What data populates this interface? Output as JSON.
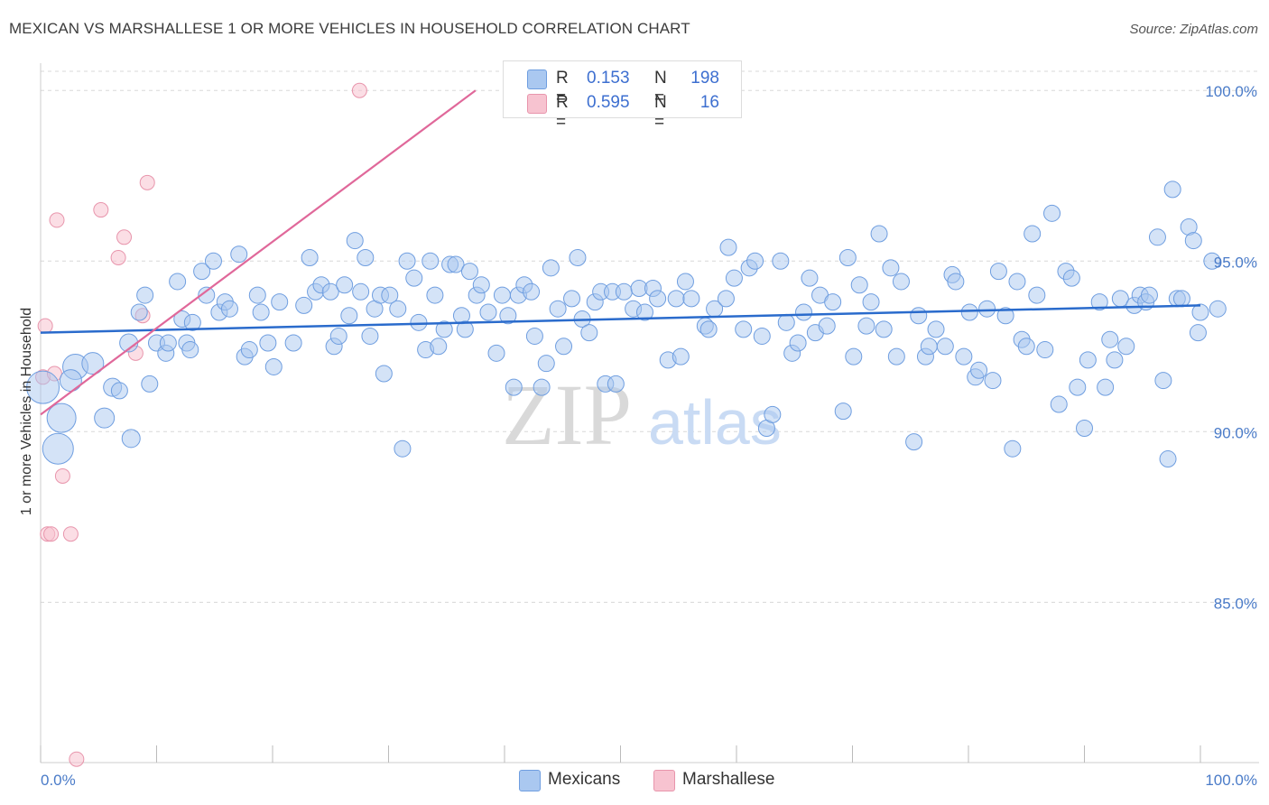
{
  "title": "MEXICAN VS MARSHALLESE 1 OR MORE VEHICLES IN HOUSEHOLD CORRELATION CHART",
  "source": "Source: ZipAtlas.com",
  "colors": {
    "blue_fill": "#aac8f0",
    "blue_stroke": "#6f9ee0",
    "blue_line": "#2a6bcc",
    "pink_fill": "#f7c3d0",
    "pink_stroke": "#e895ac",
    "pink_line": "#e0689a",
    "grid": "#d8d8d8",
    "axis_text": "#4a7bc8"
  },
  "legend": {
    "rows": [
      {
        "r_label": "R =",
        "r_value": "0.153",
        "n_label": "N =",
        "n_value": "198"
      },
      {
        "r_label": "R =",
        "r_value": "0.595",
        "n_label": "N =",
        "n_value": "16"
      }
    ]
  },
  "bottom_legend": {
    "mexicans": "Mexicans",
    "marshallese": "Marshallese"
  },
  "watermark": {
    "zip": "ZIP",
    "atlas": "atlas"
  },
  "chart_data": {
    "type": "scatter",
    "ylabel": "1 or more Vehicles in Household",
    "xlabel": "",
    "xlim": [
      0,
      100
    ],
    "ylim": [
      80.3,
      100.8
    ],
    "y_ticks": [
      85,
      90,
      95,
      100
    ],
    "y_tick_labels": [
      "85.0%",
      "90.0%",
      "95.0%",
      "100.0%"
    ],
    "x_tick_labels": [
      "0.0%",
      "100.0%"
    ],
    "grid": true,
    "series": [
      {
        "name": "Mexicans",
        "R": 0.153,
        "N": 198,
        "trend": {
          "x": [
            0,
            100
          ],
          "y": [
            92.9,
            93.7
          ]
        },
        "points": [
          [
            0.2,
            91.3,
            18
          ],
          [
            1.8,
            90.4,
            16
          ],
          [
            1.5,
            89.5,
            17
          ],
          [
            3.0,
            91.9,
            14
          ],
          [
            4.5,
            92.0,
            12
          ],
          [
            2.6,
            91.5,
            12
          ],
          [
            5.5,
            90.4,
            11
          ],
          [
            6.2,
            91.3,
            10
          ],
          [
            6.8,
            91.2,
            9
          ],
          [
            7.6,
            92.6,
            10
          ],
          [
            7.8,
            89.8,
            10
          ],
          [
            8.5,
            93.5,
            9
          ],
          [
            9.0,
            94.0,
            9
          ],
          [
            9.4,
            91.4,
            9
          ],
          [
            10.0,
            92.6,
            9
          ],
          [
            10.8,
            92.3,
            9
          ],
          [
            11.0,
            92.6,
            9
          ],
          [
            11.8,
            94.4,
            9
          ],
          [
            12.2,
            93.3,
            9
          ],
          [
            12.6,
            92.6,
            9
          ],
          [
            12.9,
            92.4,
            9
          ],
          [
            13.1,
            93.2,
            9
          ],
          [
            13.9,
            94.7,
            9
          ],
          [
            14.3,
            94.0,
            9
          ],
          [
            14.9,
            95.0,
            9
          ],
          [
            15.4,
            93.5,
            9
          ],
          [
            15.9,
            93.8,
            9
          ],
          [
            16.3,
            93.6,
            9
          ],
          [
            17.1,
            95.2,
            9
          ],
          [
            17.6,
            92.2,
            9
          ],
          [
            18.0,
            92.4,
            9
          ],
          [
            18.7,
            94.0,
            9
          ],
          [
            19.0,
            93.5,
            9
          ],
          [
            19.6,
            92.6,
            9
          ],
          [
            20.1,
            91.9,
            9
          ],
          [
            20.6,
            93.8,
            9
          ],
          [
            21.8,
            92.6,
            9
          ],
          [
            22.7,
            93.7,
            9
          ],
          [
            23.2,
            95.1,
            9
          ],
          [
            23.7,
            94.1,
            9
          ],
          [
            24.2,
            94.3,
            9
          ],
          [
            25.0,
            94.1,
            9
          ],
          [
            25.3,
            92.5,
            9
          ],
          [
            25.7,
            92.8,
            9
          ],
          [
            26.2,
            94.3,
            9
          ],
          [
            26.6,
            93.4,
            9
          ],
          [
            27.1,
            95.6,
            9
          ],
          [
            27.6,
            94.1,
            9
          ],
          [
            28.0,
            95.1,
            9
          ],
          [
            28.4,
            92.8,
            9
          ],
          [
            28.8,
            93.6,
            9
          ],
          [
            29.3,
            94.0,
            9
          ],
          [
            29.6,
            91.7,
            9
          ],
          [
            30.1,
            94.0,
            9
          ],
          [
            30.8,
            93.6,
            9
          ],
          [
            31.2,
            89.5,
            9
          ],
          [
            31.6,
            95.0,
            9
          ],
          [
            32.2,
            94.5,
            9
          ],
          [
            32.6,
            93.2,
            9
          ],
          [
            33.2,
            92.4,
            9
          ],
          [
            33.6,
            95.0,
            9
          ],
          [
            34.0,
            94.0,
            9
          ],
          [
            34.3,
            92.5,
            9
          ],
          [
            34.8,
            93.0,
            9
          ],
          [
            35.3,
            94.9,
            9
          ],
          [
            35.8,
            94.9,
            9
          ],
          [
            36.3,
            93.4,
            9
          ],
          [
            36.6,
            93.0,
            9
          ],
          [
            37.0,
            94.7,
            9
          ],
          [
            37.6,
            94.0,
            9
          ],
          [
            38.0,
            94.3,
            9
          ],
          [
            38.6,
            93.5,
            9
          ],
          [
            39.3,
            92.3,
            9
          ],
          [
            39.8,
            94.0,
            9
          ],
          [
            40.3,
            93.4,
            9
          ],
          [
            40.8,
            91.3,
            9
          ],
          [
            41.2,
            94.0,
            9
          ],
          [
            41.7,
            94.3,
            9
          ],
          [
            42.3,
            94.1,
            9
          ],
          [
            42.6,
            92.8,
            9
          ],
          [
            43.2,
            91.3,
            9
          ],
          [
            43.6,
            92.0,
            9
          ],
          [
            44.0,
            94.8,
            9
          ],
          [
            44.6,
            93.6,
            9
          ],
          [
            45.1,
            92.5,
            9
          ],
          [
            45.8,
            93.9,
            9
          ],
          [
            46.3,
            95.1,
            9
          ],
          [
            46.7,
            93.3,
            9
          ],
          [
            47.3,
            92.9,
            9
          ],
          [
            47.8,
            93.8,
            9
          ],
          [
            48.7,
            91.4,
            9
          ],
          [
            48.3,
            94.1,
            9
          ],
          [
            49.3,
            94.1,
            9
          ],
          [
            49.6,
            91.4,
            9
          ],
          [
            50.3,
            94.1,
            9
          ],
          [
            51.1,
            93.6,
            9
          ],
          [
            51.6,
            94.2,
            9
          ],
          [
            52.1,
            93.5,
            9
          ],
          [
            52.8,
            94.2,
            9
          ],
          [
            53.2,
            93.9,
            9
          ],
          [
            54.1,
            92.1,
            9
          ],
          [
            54.8,
            93.9,
            9
          ],
          [
            55.2,
            92.2,
            9
          ],
          [
            55.6,
            94.4,
            9
          ],
          [
            56.1,
            93.9,
            9
          ],
          [
            57.3,
            93.1,
            9
          ],
          [
            57.6,
            93.0,
            9
          ],
          [
            58.1,
            93.6,
            9
          ],
          [
            59.1,
            93.9,
            9
          ],
          [
            59.3,
            95.4,
            9
          ],
          [
            59.8,
            94.5,
            9
          ],
          [
            60.6,
            93.0,
            9
          ],
          [
            61.1,
            94.8,
            9
          ],
          [
            61.6,
            95.0,
            9
          ],
          [
            62.2,
            92.8,
            9
          ],
          [
            62.6,
            90.1,
            9
          ],
          [
            63.1,
            90.5,
            9
          ],
          [
            63.8,
            95.0,
            9
          ],
          [
            64.3,
            93.2,
            9
          ],
          [
            64.8,
            92.3,
            9
          ],
          [
            65.3,
            92.6,
            9
          ],
          [
            65.8,
            93.5,
            9
          ],
          [
            66.3,
            94.5,
            9
          ],
          [
            66.8,
            92.9,
            9
          ],
          [
            67.2,
            94.0,
            9
          ],
          [
            67.8,
            93.1,
            9
          ],
          [
            68.3,
            93.8,
            9
          ],
          [
            69.2,
            90.6,
            9
          ],
          [
            69.6,
            95.1,
            9
          ],
          [
            70.1,
            92.2,
            9
          ],
          [
            70.6,
            94.3,
            9
          ],
          [
            71.2,
            93.1,
            9
          ],
          [
            71.6,
            93.8,
            9
          ],
          [
            72.3,
            95.8,
            9
          ],
          [
            72.7,
            93.0,
            9
          ],
          [
            73.3,
            94.8,
            9
          ],
          [
            73.8,
            92.2,
            9
          ],
          [
            74.2,
            94.4,
            9
          ],
          [
            75.3,
            89.7,
            9
          ],
          [
            75.7,
            93.4,
            9
          ],
          [
            76.3,
            92.2,
            9
          ],
          [
            76.6,
            92.5,
            9
          ],
          [
            77.2,
            93.0,
            9
          ],
          [
            78.0,
            92.5,
            9
          ],
          [
            78.6,
            94.6,
            9
          ],
          [
            78.9,
            94.4,
            9
          ],
          [
            79.6,
            92.2,
            9
          ],
          [
            80.1,
            93.5,
            9
          ],
          [
            80.6,
            91.6,
            9
          ],
          [
            80.9,
            91.8,
            9
          ],
          [
            81.6,
            93.6,
            9
          ],
          [
            82.1,
            91.5,
            9
          ],
          [
            82.6,
            94.7,
            9
          ],
          [
            83.2,
            93.4,
            9
          ],
          [
            83.8,
            89.5,
            9
          ],
          [
            84.2,
            94.4,
            9
          ],
          [
            84.6,
            92.7,
            9
          ],
          [
            85.0,
            92.5,
            9
          ],
          [
            85.5,
            95.8,
            9
          ],
          [
            85.9,
            94.0,
            9
          ],
          [
            86.6,
            92.4,
            9
          ],
          [
            87.2,
            96.4,
            9
          ],
          [
            87.8,
            90.8,
            9
          ],
          [
            88.4,
            94.7,
            9
          ],
          [
            88.9,
            94.5,
            9
          ],
          [
            89.4,
            91.3,
            9
          ],
          [
            90.0,
            90.1,
            9
          ],
          [
            90.3,
            92.1,
            9
          ],
          [
            91.3,
            93.8,
            9
          ],
          [
            91.8,
            91.3,
            9
          ],
          [
            92.2,
            92.7,
            9
          ],
          [
            92.6,
            92.1,
            9
          ],
          [
            93.1,
            93.9,
            9
          ],
          [
            93.6,
            92.5,
            9
          ],
          [
            94.3,
            93.7,
            9
          ],
          [
            94.8,
            94.0,
            9
          ],
          [
            95.3,
            93.8,
            9
          ],
          [
            95.6,
            94.0,
            9
          ],
          [
            96.3,
            95.7,
            9
          ],
          [
            96.8,
            91.5,
            9
          ],
          [
            97.2,
            89.2,
            9
          ],
          [
            97.6,
            97.1,
            9
          ],
          [
            98.0,
            93.9,
            9
          ],
          [
            98.4,
            93.9,
            9
          ],
          [
            99.0,
            96.0,
            9
          ],
          [
            99.4,
            95.6,
            9
          ],
          [
            99.8,
            92.9,
            9
          ],
          [
            100.0,
            93.5,
            9
          ],
          [
            101.0,
            95.0,
            9
          ],
          [
            101.5,
            93.6,
            9
          ]
        ]
      },
      {
        "name": "Marshallese",
        "R": 0.595,
        "N": 16,
        "trend": {
          "x": [
            0,
            37.5
          ],
          "y": [
            90.5,
            100.0
          ]
        },
        "points": [
          [
            0.2,
            91.6,
            8
          ],
          [
            0.4,
            93.1,
            8
          ],
          [
            0.6,
            87.0,
            8
          ],
          [
            0.9,
            87.0,
            8
          ],
          [
            1.2,
            91.7,
            8
          ],
          [
            1.4,
            96.2,
            8
          ],
          [
            1.9,
            88.7,
            8
          ],
          [
            2.6,
            87.0,
            8
          ],
          [
            3.1,
            80.4,
            8
          ],
          [
            5.2,
            96.5,
            8
          ],
          [
            6.7,
            95.1,
            8
          ],
          [
            7.2,
            95.7,
            8
          ],
          [
            8.2,
            92.3,
            8
          ],
          [
            8.8,
            93.4,
            8
          ],
          [
            9.2,
            97.3,
            8
          ],
          [
            27.5,
            100.0,
            8
          ]
        ]
      }
    ]
  }
}
